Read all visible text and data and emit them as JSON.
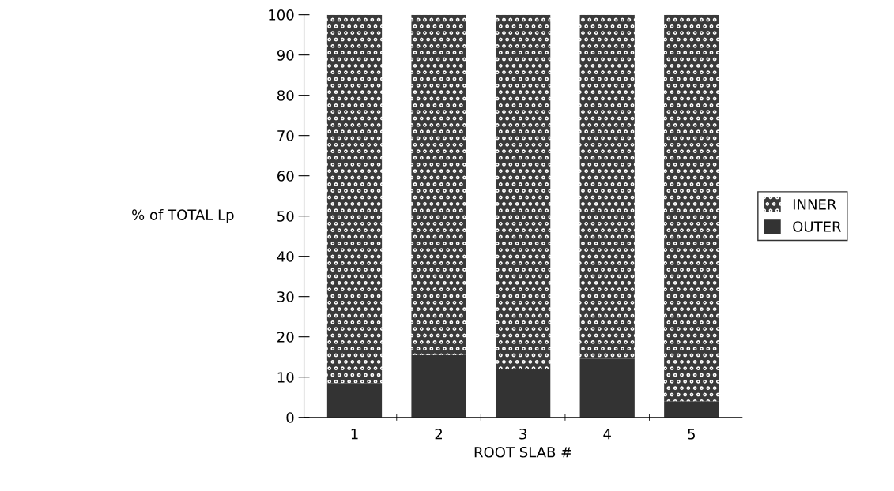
{
  "chart_data": {
    "type": "bar",
    "stacked": true,
    "xlabel": "ROOT SLAB #",
    "ylabel": "% of TOTAL Lp",
    "categories": [
      "1",
      "2",
      "3",
      "4",
      "5"
    ],
    "series": [
      {
        "name": "OUTER",
        "color": "#333333",
        "values": [
          8.5,
          15.5,
          12,
          14.5,
          4
        ]
      },
      {
        "name": "INNER",
        "color": "#3a3a3a",
        "values": [
          91.5,
          84.5,
          88,
          85.5,
          96
        ]
      }
    ],
    "ylim": [
      0,
      100
    ],
    "yticks": [
      0,
      10,
      20,
      30,
      40,
      50,
      60,
      70,
      80,
      90,
      100
    ],
    "grid": false,
    "legend": "right"
  }
}
